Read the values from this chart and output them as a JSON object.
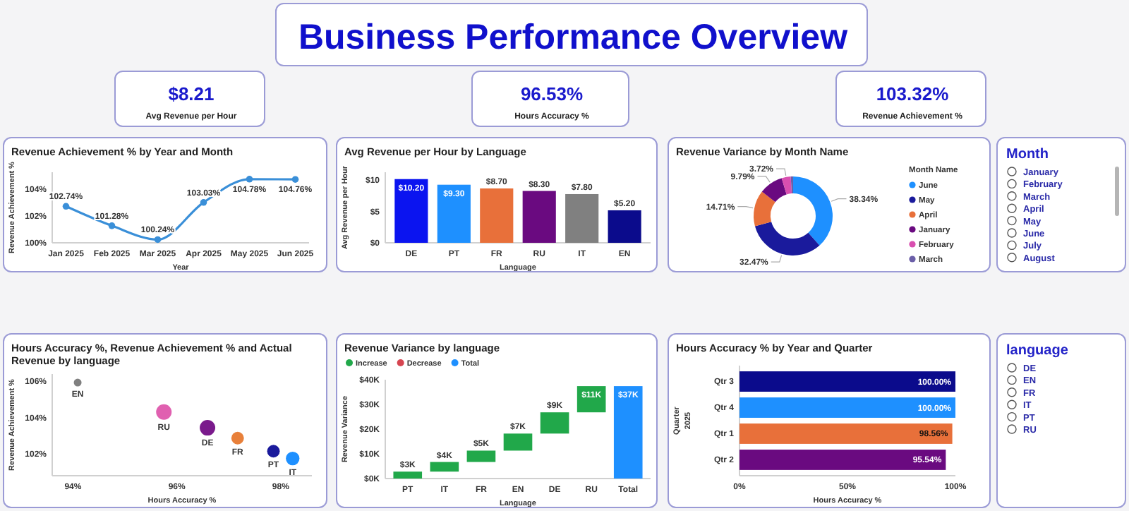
{
  "chart_data": [
    {
      "type": "other",
      "title": "Business Performance Overview"
    },
    {
      "type": "other",
      "title": "Avg Revenue per Hour",
      "annotations": [
        "$8.21"
      ]
    },
    {
      "type": "other",
      "title": "Hours  Accuracy %",
      "annotations": [
        "96.53%"
      ]
    },
    {
      "type": "other",
      "title": "Revenue Achievement %",
      "annotations": [
        "103.32%"
      ]
    },
    {
      "type": "line",
      "title": "Revenue Achievement % by Year and Month",
      "xlabel": "Year",
      "ylabel": "Revenue Achievement %",
      "categories": [
        "Jan 2025",
        "Feb 2025",
        "Mar 2025",
        "Apr 2025",
        "May 2025",
        "Jun 2025"
      ],
      "values": [
        102.74,
        101.28,
        100.24,
        103.03,
        104.78,
        104.76
      ],
      "value_labels": [
        "102.74%",
        "101.28%",
        "100.24%",
        "103.03%",
        "104.78%",
        "104.76%"
      ],
      "color": "#3a8fd8",
      "marker": "circle",
      "ylim": [
        100,
        105.3
      ],
      "yticks": [
        {
          "value": 100,
          "label": "100%"
        },
        {
          "value": 102,
          "label": "102%"
        },
        {
          "value": 104,
          "label": "104%"
        }
      ]
    },
    {
      "type": "bar",
      "title": "Avg Revenue per Hour by Language",
      "xlabel": "Language",
      "ylabel": "Avg Revenue per Hour",
      "categories": [
        "DE",
        "PT",
        "FR",
        "RU",
        "IT",
        "EN"
      ],
      "values": [
        10.2,
        9.3,
        8.7,
        8.3,
        7.8,
        5.2
      ],
      "colors": [
        "#0b14f0",
        "#1e90ff",
        "#e8703a",
        "#6a0a80",
        "#808080",
        "#0b0b8c"
      ],
      "value_labels": [
        "$10.20",
        "$9.30",
        "$8.70",
        "$8.30",
        "$7.80",
        "$5.20"
      ],
      "ylim": [
        0,
        11.3
      ],
      "yticks": [
        {
          "value": 0,
          "label": "$0"
        },
        {
          "value": 5,
          "label": "$5"
        },
        {
          "value": 10,
          "label": "$10"
        }
      ]
    },
    {
      "type": "donut",
      "title": "Revenue Variance by Month Name",
      "legend_title": "Month Name",
      "legend": "right",
      "categories": [
        "June",
        "May",
        "April",
        "January",
        "February",
        "March"
      ],
      "values": [
        38.34,
        32.47,
        14.71,
        9.79,
        3.72,
        0.97
      ],
      "colors": [
        "#1e90ff",
        "#1a1a9c",
        "#e8703a",
        "#6a0a80",
        "#d94fb0",
        "#6b5fa8"
      ],
      "value_labels": [
        "38.34%",
        "32.47%",
        "14.71%",
        "9.79%",
        "3.72%",
        null
      ]
    },
    {
      "type": "other",
      "title": "Month",
      "categories": [
        "January",
        "February",
        "March",
        "April",
        "May",
        "June",
        "July",
        "August"
      ]
    },
    {
      "type": "bubble",
      "title": "Hours Accuracy %, Revenue Achievement % and Actual Revenue by language",
      "xlabel": "Hours Accuracy %",
      "ylabel": "Revenue Achievement %",
      "xlim": [
        93.6,
        98.6
      ],
      "ylim": [
        100.8,
        106.4
      ],
      "xticks": [
        {
          "value": 94,
          "label": "94%"
        },
        {
          "value": 96,
          "label": "96%"
        },
        {
          "value": 98,
          "label": "98%"
        }
      ],
      "yticks": [
        {
          "value": 102,
          "label": "102%"
        },
        {
          "value": 104,
          "label": "104%"
        },
        {
          "value": 106,
          "label": "106%"
        }
      ],
      "series": [
        {
          "name": "EN",
          "color": "#808080",
          "x": [
            94.09
          ],
          "values": [
            105.93
          ],
          "sizes": [
            0.25
          ]
        },
        {
          "name": "RU",
          "color": "#e060b0",
          "x": [
            95.75
          ],
          "values": [
            104.31
          ],
          "sizes": [
            1
          ]
        },
        {
          "name": "DE",
          "color": "#7a1a8c",
          "x": [
            96.59
          ],
          "values": [
            103.44
          ],
          "sizes": [
            1
          ]
        },
        {
          "name": "FR",
          "color": "#e8803a",
          "x": [
            97.17
          ],
          "values": [
            102.87
          ],
          "sizes": [
            0.66
          ]
        },
        {
          "name": "PT",
          "color": "#1a1a9c",
          "x": [
            97.86
          ],
          "values": [
            102.15
          ],
          "sizes": [
            0.66
          ]
        },
        {
          "name": "IT",
          "color": "#1e90ff",
          "x": [
            98.23
          ],
          "values": [
            101.75
          ],
          "sizes": [
            0.77
          ]
        }
      ]
    },
    {
      "type": "bar",
      "title": "Revenue Variance by language",
      "xlabel": "Language",
      "ylabel": "Revenue Variance",
      "legend": "top left",
      "categories": [
        "PT",
        "IT",
        "FR",
        "EN",
        "DE",
        "RU",
        "Total"
      ],
      "series": [
        {
          "name": "Increase",
          "color": "#21a84a",
          "base": [
            0,
            2.8,
            6.7,
            11.3,
            18.2,
            26.8,
            null
          ],
          "values": [
            2.8,
            3.9,
            4.6,
            6.9,
            8.6,
            10.6,
            null
          ],
          "value_labels": [
            "$3K",
            "$4K",
            "$5K",
            "$7K",
            "$9K",
            "$11K",
            null
          ]
        },
        {
          "name": "Decrease",
          "color": "#d64550",
          "values": [
            null,
            null,
            null,
            null,
            null,
            null,
            null
          ]
        },
        {
          "name": "Total",
          "color": "#1e90ff",
          "base": [
            null,
            null,
            null,
            null,
            null,
            null,
            0
          ],
          "values": [
            null,
            null,
            null,
            null,
            null,
            null,
            37.4
          ],
          "value_labels": [
            null,
            null,
            null,
            null,
            null,
            null,
            "$37K"
          ]
        }
      ],
      "ylim": [
        0,
        40
      ],
      "yticks": [
        {
          "value": 0,
          "label": "$0K"
        },
        {
          "value": 10,
          "label": "$10K"
        },
        {
          "value": 20,
          "label": "$20K"
        },
        {
          "value": 30,
          "label": "$30K"
        },
        {
          "value": 40,
          "label": "$40K"
        }
      ]
    },
    {
      "type": "bar",
      "orientation": "horizontal",
      "title": "Hours Accuracy % by Year and Quarter",
      "xlabel": "Hours Accuracy %",
      "ylabel": "Quarter",
      "annotations": [
        "2025"
      ],
      "categories": [
        "Qtr 3",
        "Qtr 4",
        "Qtr 1",
        "Qtr 2"
      ],
      "values": [
        100,
        100,
        98.56,
        95.54
      ],
      "colors": [
        "#0b0b8c",
        "#1e90ff",
        "#e8703a",
        "#6a0a80"
      ],
      "value_labels": [
        "100.00%",
        "100.00%",
        "98.56%",
        "95.54%"
      ],
      "xlim": [
        0,
        100
      ],
      "xticks": [
        {
          "value": 0,
          "label": "0%"
        },
        {
          "value": 50,
          "label": "50%"
        },
        {
          "value": 100,
          "label": "100%"
        }
      ]
    },
    {
      "type": "other",
      "title": "language",
      "categories": [
        "DE",
        "EN",
        "FR",
        "IT",
        "PT",
        "RU"
      ]
    }
  ]
}
